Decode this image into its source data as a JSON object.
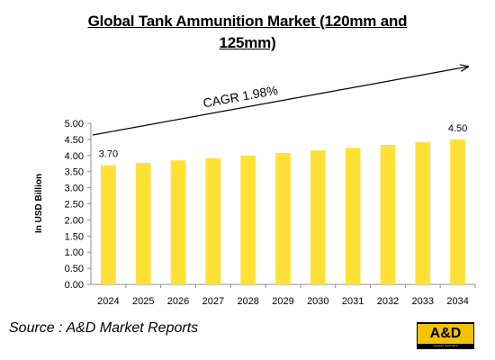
{
  "chart_data": {
    "type": "bar",
    "title_line1": "Global Tank Ammunition Market  (120mm and",
    "title_line2": "125mm)",
    "ylabel": "In USD Billion",
    "xlabel": "",
    "categories": [
      "2024",
      "2025",
      "2026",
      "2027",
      "2028",
      "2029",
      "2030",
      "2031",
      "2032",
      "2033",
      "2034"
    ],
    "values": [
      3.7,
      3.77,
      3.85,
      3.92,
      4.0,
      4.08,
      4.16,
      4.24,
      4.33,
      4.41,
      4.5
    ],
    "data_labels": {
      "first": "3.70",
      "last": "4.50"
    },
    "ylim": [
      0,
      5
    ],
    "yticks": [
      "0.00",
      "0.50",
      "1.00",
      "1.50",
      "2.00",
      "2.50",
      "3.00",
      "3.50",
      "4.00",
      "4.50",
      "5.00"
    ],
    "annotation": "CAGR 1.98%",
    "bar_color": "#FFE135",
    "grid": false,
    "legend": "none"
  },
  "source": "Source : A&D Market Reports",
  "logo": {
    "text": "A&D",
    "subtext": "MARKET REPORTS",
    "color": "#F2C300"
  }
}
